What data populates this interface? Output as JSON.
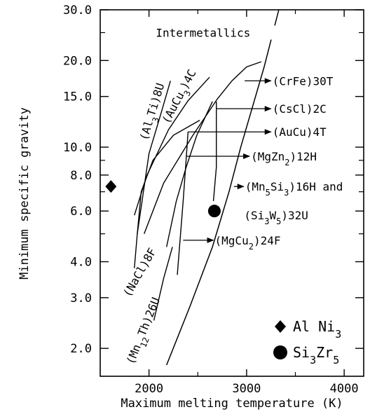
{
  "chart_data": {
    "type": "line",
    "title": "",
    "xlabel": "Maximum melting temperature (K)",
    "ylabel": "Minimum specific gravity",
    "xlim": [
      1500,
      4200
    ],
    "ylim": [
      1.6,
      30.0
    ],
    "yscale": "log",
    "grid": false,
    "legend_position": "bottom-right",
    "x_ticks": [
      {
        "value": 2000,
        "label": "2000"
      },
      {
        "value": 3000,
        "label": "3000"
      },
      {
        "value": 4000,
        "label": "4000"
      }
    ],
    "y_ticks": [
      {
        "value": 30.0,
        "label": "30.0"
      },
      {
        "value": 20.0,
        "label": "20.0"
      },
      {
        "value": 15.0,
        "label": "15.0"
      },
      {
        "value": 10.0,
        "label": "10.0"
      },
      {
        "value": 8.0,
        "label": "8.0"
      },
      {
        "value": 6.0,
        "label": "6.0"
      },
      {
        "value": 4.0,
        "label": "4.0"
      },
      {
        "value": 3.0,
        "label": "3.0"
      },
      {
        "value": 2.0,
        "label": "2.0"
      }
    ],
    "y_minor_ticks": [
      25,
      9,
      7,
      5
    ],
    "envelope": [
      [
        3330,
        30.0
      ],
      [
        3180,
        19.0
      ],
      [
        2940,
        10.0
      ],
      [
        2820,
        7.0
      ],
      [
        2650,
        4.5
      ],
      [
        2420,
        2.8
      ],
      [
        2180,
        1.75
      ]
    ],
    "curves": [
      {
        "label": "(Al3Ti)8U",
        "points": [
          [
            1880,
            5.0
          ],
          [
            2000,
            9.5
          ],
          [
            2120,
            13.0
          ],
          [
            2220,
            17.0
          ]
        ]
      },
      {
        "label": "(AuCu3)4C",
        "points": [
          [
            1850,
            5.8
          ],
          [
            1980,
            8.0
          ],
          [
            2200,
            11.5
          ],
          [
            2400,
            14.5
          ],
          [
            2620,
            17.5
          ]
        ]
      },
      {
        "label": "(CrFe)30T",
        "points": [
          [
            1950,
            5.0
          ],
          [
            2150,
            7.5
          ],
          [
            2450,
            11.0
          ],
          [
            2700,
            14.7
          ],
          [
            2850,
            17.0
          ],
          [
            3000,
            19.0
          ],
          [
            3150,
            19.8
          ]
        ]
      },
      {
        "label": "(NaCl)8F",
        "points": [
          [
            1850,
            3.8
          ],
          [
            1880,
            5.0
          ],
          [
            1920,
            7.0
          ],
          [
            2040,
            9.0
          ],
          [
            2250,
            11.0
          ],
          [
            2520,
            12.4
          ]
        ]
      },
      {
        "label": "(CsCl)2C",
        "points": [
          [
            2180,
            4.5
          ],
          [
            2280,
            6.5
          ],
          [
            2380,
            8.5
          ],
          [
            2490,
            11.0
          ],
          [
            2650,
            14.4
          ]
        ]
      },
      {
        "label": "(MgZn2)12H",
        "points": [
          [
            2290,
            3.6
          ],
          [
            2350,
            6.5
          ],
          [
            2380,
            9.0
          ],
          [
            2400,
            11.3
          ]
        ]
      },
      {
        "label": "(Mn12Th)26U",
        "points": [
          [
            2050,
            2.5
          ],
          [
            2150,
            3.5
          ],
          [
            2240,
            4.5
          ]
        ]
      },
      {
        "label": "(MgCu2)24F",
        "points": [
          [
            2660,
            6.5
          ],
          [
            2690,
            8.5
          ],
          [
            2690,
            14.4
          ]
        ]
      }
    ],
    "annotations": [
      {
        "text": "Intermetallics",
        "text_pos": [
          2070,
          25.0
        ],
        "arrow_from": [
          2820,
          25.0
        ],
        "arrow_to": [
          3260,
          25.0
        ]
      },
      {
        "text": "(CrFe)30T",
        "text_pos": [
          3250,
          17.0
        ],
        "arrow_from": [
          2980,
          17.0
        ],
        "arrow_to": [
          3250,
          17.0
        ]
      },
      {
        "text": "(CsCl)2C",
        "text_pos": [
          3250,
          13.6
        ],
        "arrow_from": [
          2690,
          13.6
        ],
        "arrow_to": [
          3250,
          13.6
        ]
      },
      {
        "text": "(AuCu)4T",
        "text_pos": [
          3250,
          11.3
        ],
        "arrow_from": [
          2400,
          11.3
        ],
        "arrow_to": [
          3250,
          11.3
        ]
      },
      {
        "text": "(MgZn2)12H",
        "text_pos": [
          3030,
          9.3
        ],
        "arrow_from": [
          2380,
          9.3
        ],
        "arrow_to": [
          3030,
          9.3
        ]
      },
      {
        "text": "(Mn5Si3)16H and",
        "text_pos": [
          2970,
          7.3
        ],
        "arrow_from": [
          2870,
          7.3
        ],
        "arrow_to": [
          2970,
          7.3
        ]
      },
      {
        "text": "(Si3W5)32U",
        "text_pos": [
          2960,
          5.8
        ],
        "arrow_from": [
          2960,
          5.8
        ],
        "arrow_to": [
          2960,
          5.8
        ]
      },
      {
        "text": "(MgCu2)24F",
        "text_pos": [
          2660,
          4.75
        ],
        "arrow_from": [
          2350,
          4.75
        ],
        "arrow_to": [
          2660,
          4.75
        ]
      }
    ],
    "curve_labels": [
      {
        "text": "(Al3Ti)8U",
        "pos": [
          1980,
          10.5
        ],
        "angle": -73
      },
      {
        "text": "(AuCu3)4C",
        "pos": [
          2200,
          12.0
        ],
        "angle": -62
      },
      {
        "text": "(NaCl)8F",
        "pos": [
          1800,
          3.0
        ],
        "angle": -60
      },
      {
        "text": "(Mn12Th)26U",
        "pos": [
          1840,
          1.75
        ],
        "angle": -68
      }
    ],
    "points": [
      {
        "series": "Al Ni3",
        "marker": "diamond",
        "x": 1610,
        "y": 7.3
      },
      {
        "series": "Si3Zr5",
        "marker": "circle",
        "x": 2670,
        "y": 6.0
      }
    ],
    "legend": [
      {
        "label": "Al Ni3",
        "marker": "diamond"
      },
      {
        "label": "Si3Zr5",
        "marker": "circle"
      }
    ]
  }
}
